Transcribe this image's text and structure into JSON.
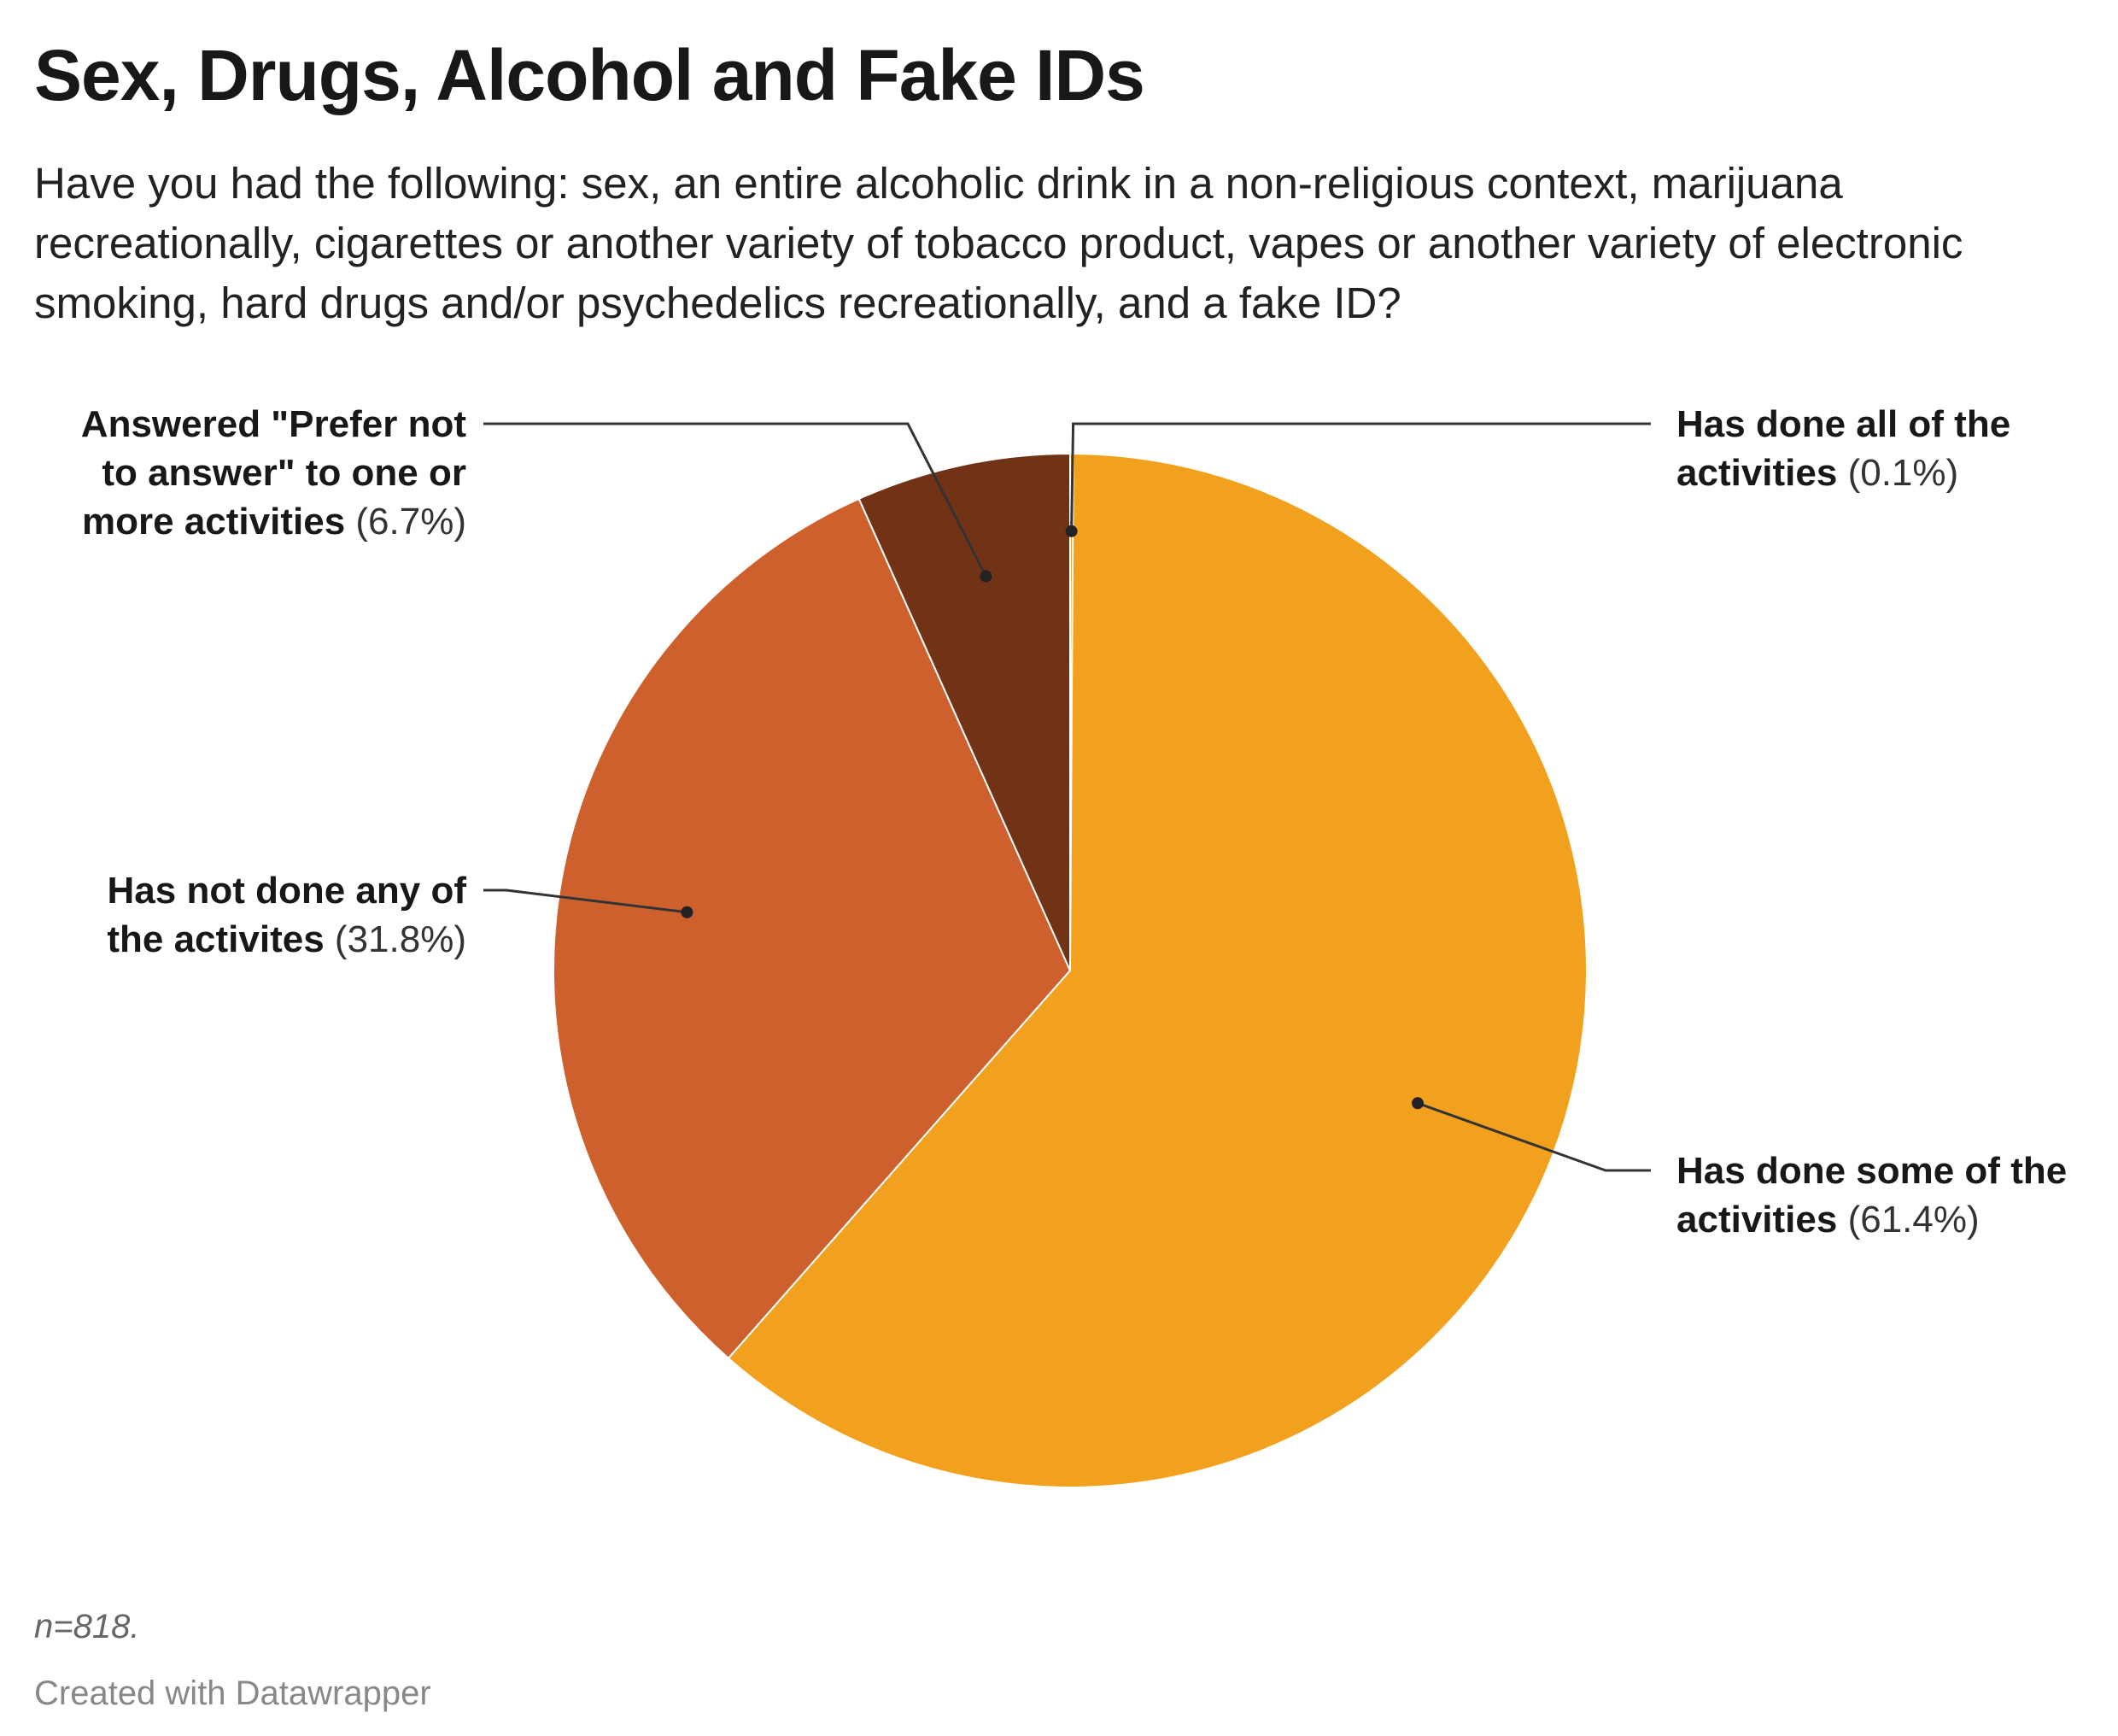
{
  "title": "Sex, Drugs, Alcohol and Fake IDs",
  "subtitle": "Have you had the following: sex, an entire alcoholic drink in a non-religious context, marijuana recreationally, cigarettes or another variety of tobacco product, vapes or another variety of electronic smoking, hard drugs and/or psychedelics recreationally, and a fake ID?",
  "chart_data": {
    "type": "pie",
    "title": "Sex, Drugs, Alcohol and Fake IDs",
    "slices": [
      {
        "label": "Has done all of the activities",
        "value": 0.1,
        "value_label": "(0.1%)",
        "color": "#f2a11f"
      },
      {
        "label": "Has done some of the activities",
        "value": 61.4,
        "value_label": "(61.4%)",
        "color": "#f2a11f"
      },
      {
        "label": "Has not done any of the activites",
        "value": 31.8,
        "value_label": "(31.8%)",
        "color": "#cd602d"
      },
      {
        "label": "Answered \"Prefer not to answer\" to one or more activities",
        "value": 6.7,
        "value_label": "(6.7%)",
        "color": "#723215"
      }
    ]
  },
  "labels": {
    "all": {
      "line1": "Has done all of the",
      "line2": "activities",
      "pct": "(0.1%)"
    },
    "some": {
      "line1": "Has done some of the",
      "line2": "activities",
      "pct": "(61.4%)"
    },
    "none": {
      "line1": "Has not done any of",
      "line2": "the activites",
      "pct": "(31.8%)"
    },
    "prefer": {
      "line1": "Answered \"Prefer not",
      "line2": "to answer\" to one or",
      "line3": "more activities",
      "pct": "(6.7%)"
    }
  },
  "footer": {
    "note": "n=818.",
    "credit": "Created with Datawrapper"
  }
}
